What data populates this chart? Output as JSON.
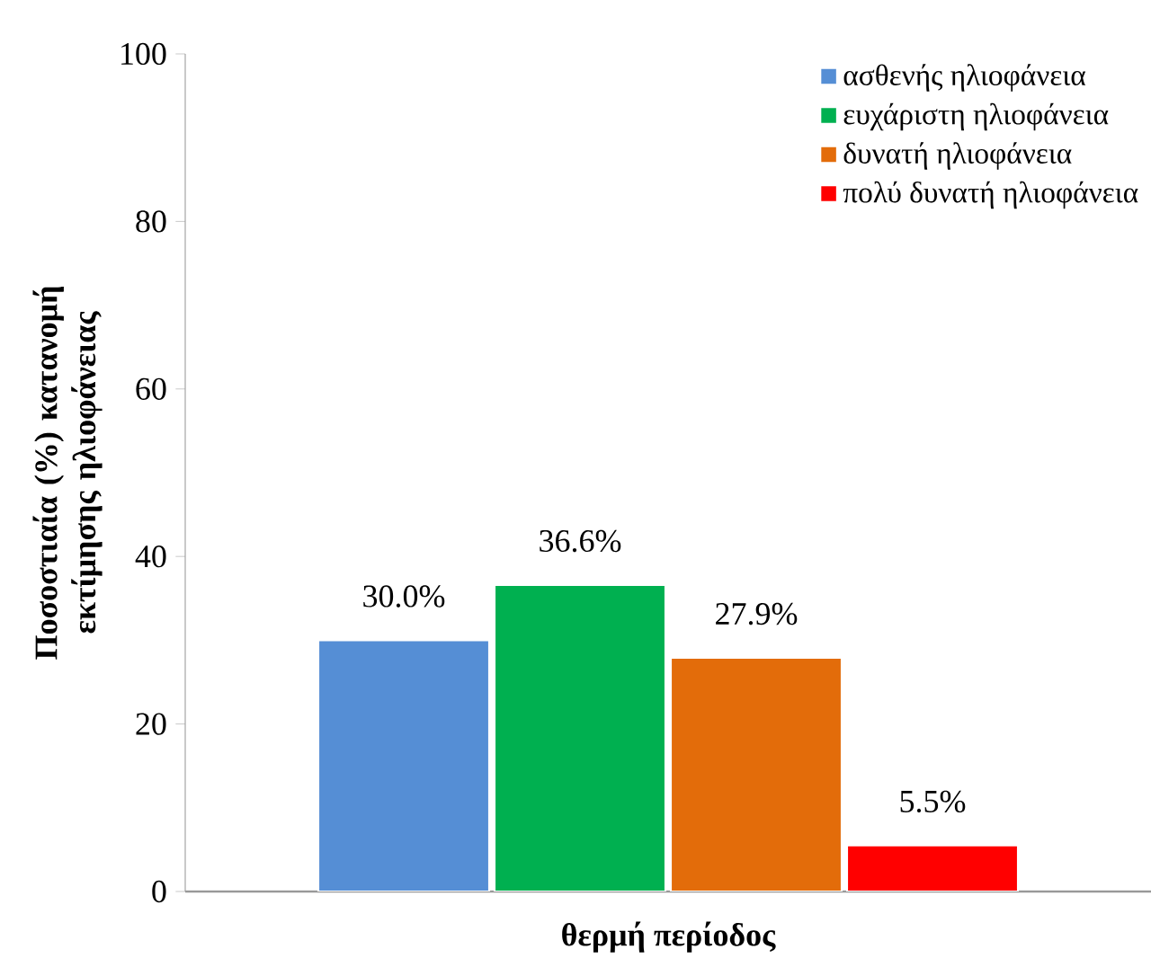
{
  "chart_data": {
    "type": "bar",
    "ylabel": "Ποσοστιαία (%) κατανομή εκτίμησης ηλιοφάνειας",
    "categories": [
      "θερμή περίοδος"
    ],
    "series": [
      {
        "name": "ασθενής ηλιοφάνεια",
        "color": "#558ed5",
        "values": [
          30.0
        ],
        "value_labels": [
          "30.0%"
        ]
      },
      {
        "name": "ευχάριστη ηλιοφάνεια",
        "color": "#00b050",
        "values": [
          36.6
        ],
        "value_labels": [
          "36.6%"
        ]
      },
      {
        "name": "δυνατή ηλιοφάνεια",
        "color": "#e36c0a",
        "values": [
          27.9
        ],
        "value_labels": [
          "27.9%"
        ]
      },
      {
        "name": "πολύ δυνατή ηλιοφάνεια",
        "color": "#ff0000",
        "values": [
          5.5
        ],
        "value_labels": [
          "5.5%"
        ]
      }
    ],
    "ylim": [
      0,
      100
    ],
    "yticks": [
      0,
      20,
      40,
      60,
      80,
      100
    ],
    "grid": false,
    "legend": "top right"
  }
}
